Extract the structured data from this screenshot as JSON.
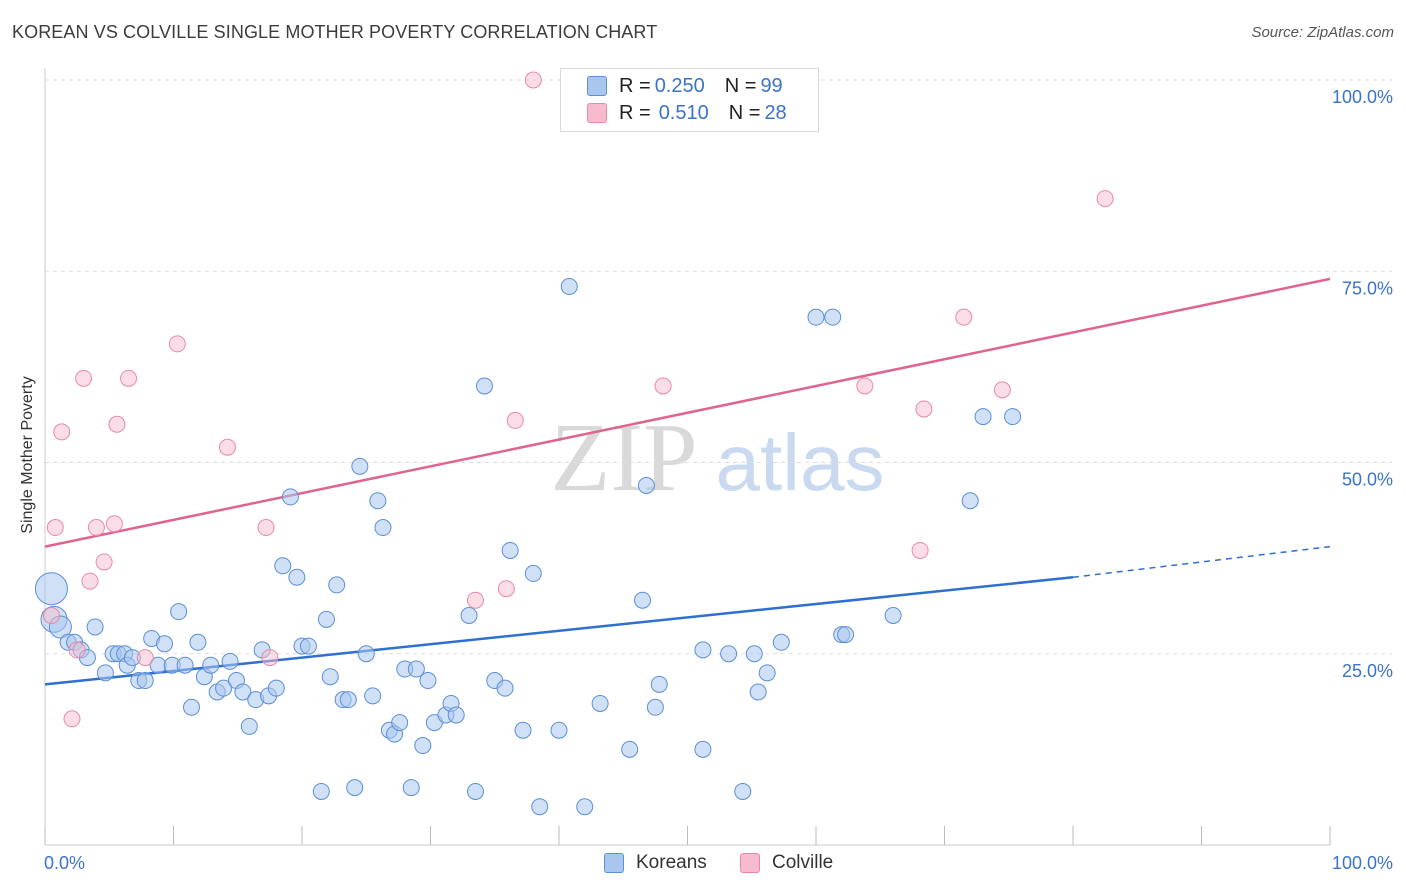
{
  "title": "KOREAN VS COLVILLE SINGLE MOTHER POVERTY CORRELATION CHART",
  "source": "Source: ZipAtlas.com",
  "watermark": {
    "zip": "ZIP",
    "atlas": "atlas"
  },
  "legend_top": [
    {
      "r_label": "R = ",
      "r_value": "0.250",
      "n_label": "N = ",
      "n_value": "99"
    },
    {
      "r_label": "R = ",
      "r_value": "0.510",
      "n_label": "N = ",
      "n_value": "28"
    }
  ],
  "colors": {
    "koreans_fill": "#a9c7ee",
    "koreans_stroke": "#5b8fd6",
    "koreans_line": "#2e6fd0",
    "colville_fill": "#f6bccd",
    "colville_stroke": "#e88aa6",
    "colville_line": "#e0648e",
    "axis_text": "#3a73c8",
    "grid": "#dddddd"
  },
  "chart_data": {
    "type": "scatter",
    "title": "KOREAN VS COLVILLE SINGLE MOTHER POVERTY CORRELATION CHART",
    "xlabel": "",
    "ylabel": "Single Mother Poverty",
    "xlim": [
      0,
      100
    ],
    "ylim": [
      0,
      100
    ],
    "x_tick_labels": [
      "0.0%",
      "100.0%"
    ],
    "y_tick_labels": [
      "25.0%",
      "50.0%",
      "75.0%",
      "100.0%"
    ],
    "y_ticks": [
      25,
      50,
      75,
      100
    ],
    "grid": "horizontal dashed",
    "legend_placement": "top-center and bottom",
    "series": [
      {
        "name": "Koreans",
        "points": [
          [
            0.5,
            33.5
          ],
          [
            0.7,
            29.5
          ],
          [
            1.2,
            28.5
          ],
          [
            1.8,
            26.5
          ],
          [
            2.3,
            26.5
          ],
          [
            2.8,
            25.5
          ],
          [
            3.3,
            24.5
          ],
          [
            3.9,
            28.5
          ],
          [
            4.7,
            22.5
          ],
          [
            5.3,
            25
          ],
          [
            5.7,
            25
          ],
          [
            6.2,
            25
          ],
          [
            6.4,
            23.5
          ],
          [
            6.8,
            24.5
          ],
          [
            7.3,
            21.5
          ],
          [
            7.8,
            21.5
          ],
          [
            8.3,
            27
          ],
          [
            8.8,
            23.5
          ],
          [
            9.3,
            26.3
          ],
          [
            9.9,
            23.5
          ],
          [
            10.4,
            30.5
          ],
          [
            10.9,
            23.5
          ],
          [
            11.4,
            18
          ],
          [
            11.9,
            26.5
          ],
          [
            12.4,
            22
          ],
          [
            12.9,
            23.5
          ],
          [
            13.4,
            20
          ],
          [
            13.9,
            20.5
          ],
          [
            14.4,
            24
          ],
          [
            14.9,
            21.5
          ],
          [
            15.4,
            20
          ],
          [
            15.9,
            15.5
          ],
          [
            16.4,
            19
          ],
          [
            16.9,
            25.5
          ],
          [
            17.4,
            19.5
          ],
          [
            18.0,
            20.5
          ],
          [
            18.5,
            36.5
          ],
          [
            19.1,
            45.5
          ],
          [
            19.6,
            35
          ],
          [
            20.0,
            26
          ],
          [
            20.5,
            26
          ],
          [
            21.5,
            7
          ],
          [
            21.9,
            29.5
          ],
          [
            22.2,
            22
          ],
          [
            22.7,
            34
          ],
          [
            23.2,
            19
          ],
          [
            23.6,
            19
          ],
          [
            24.1,
            7.5
          ],
          [
            24.5,
            49.5
          ],
          [
            25.0,
            25
          ],
          [
            25.5,
            19.5
          ],
          [
            25.9,
            45
          ],
          [
            26.3,
            41.5
          ],
          [
            26.8,
            15
          ],
          [
            27.2,
            14.5
          ],
          [
            27.6,
            16
          ],
          [
            28.0,
            23
          ],
          [
            28.5,
            7.5
          ],
          [
            28.9,
            23
          ],
          [
            29.4,
            13
          ],
          [
            29.8,
            21.5
          ],
          [
            30.3,
            16
          ],
          [
            31.2,
            17
          ],
          [
            31.6,
            18.5
          ],
          [
            32.0,
            17
          ],
          [
            33.0,
            30
          ],
          [
            33.5,
            7
          ],
          [
            34.2,
            60
          ],
          [
            35.0,
            21.5
          ],
          [
            35.8,
            20.5
          ],
          [
            36.2,
            38.5
          ],
          [
            37.2,
            15
          ],
          [
            38.0,
            35.5
          ],
          [
            38.5,
            5
          ],
          [
            40.0,
            15
          ],
          [
            40.8,
            73
          ],
          [
            42.0,
            5
          ],
          [
            43.2,
            18.5
          ],
          [
            45.5,
            12.5
          ],
          [
            46.5,
            32
          ],
          [
            46.8,
            47
          ],
          [
            47.5,
            18
          ],
          [
            47.8,
            21
          ],
          [
            51.2,
            12.5
          ],
          [
            51.2,
            25.5
          ],
          [
            53.2,
            25
          ],
          [
            54.3,
            7
          ],
          [
            55.2,
            25
          ],
          [
            55.5,
            20
          ],
          [
            56.2,
            22.5
          ],
          [
            57.3,
            26.5
          ],
          [
            60.0,
            69
          ],
          [
            61.3,
            69
          ],
          [
            62.0,
            27.5
          ],
          [
            62.3,
            27.5
          ],
          [
            66.0,
            30
          ],
          [
            72.0,
            45
          ],
          [
            73.0,
            56
          ],
          [
            75.3,
            56
          ]
        ],
        "trend": {
          "x0": 0,
          "y0": 21,
          "x1": 80,
          "y1": 35,
          "dashed_to_x": 100,
          "dashed_to_y": 39
        }
      },
      {
        "name": "Colville",
        "points": [
          [
            0.5,
            30
          ],
          [
            0.8,
            41.5
          ],
          [
            1.3,
            54
          ],
          [
            2.1,
            16.5
          ],
          [
            2.5,
            25.5
          ],
          [
            3.0,
            61
          ],
          [
            3.5,
            34.5
          ],
          [
            4.0,
            41.5
          ],
          [
            4.6,
            37
          ],
          [
            5.4,
            42
          ],
          [
            5.6,
            55
          ],
          [
            6.5,
            61
          ],
          [
            7.8,
            24.5
          ],
          [
            10.3,
            65.5
          ],
          [
            14.2,
            52
          ],
          [
            17.2,
            41.5
          ],
          [
            17.5,
            24.5
          ],
          [
            33.5,
            32
          ],
          [
            35.9,
            33.5
          ],
          [
            36.6,
            55.5
          ],
          [
            38.0,
            100
          ],
          [
            48.1,
            60
          ],
          [
            63.8,
            60
          ],
          [
            68.1,
            38.5
          ],
          [
            68.4,
            57
          ],
          [
            71.5,
            69
          ],
          [
            74.5,
            59.5
          ],
          [
            82.5,
            84.5
          ]
        ],
        "trend": {
          "x0": 0,
          "y0": 39,
          "x1": 100,
          "y1": 74
        }
      }
    ]
  },
  "bottom_legend": [
    {
      "label": "Koreans"
    },
    {
      "label": "Colville"
    }
  ]
}
